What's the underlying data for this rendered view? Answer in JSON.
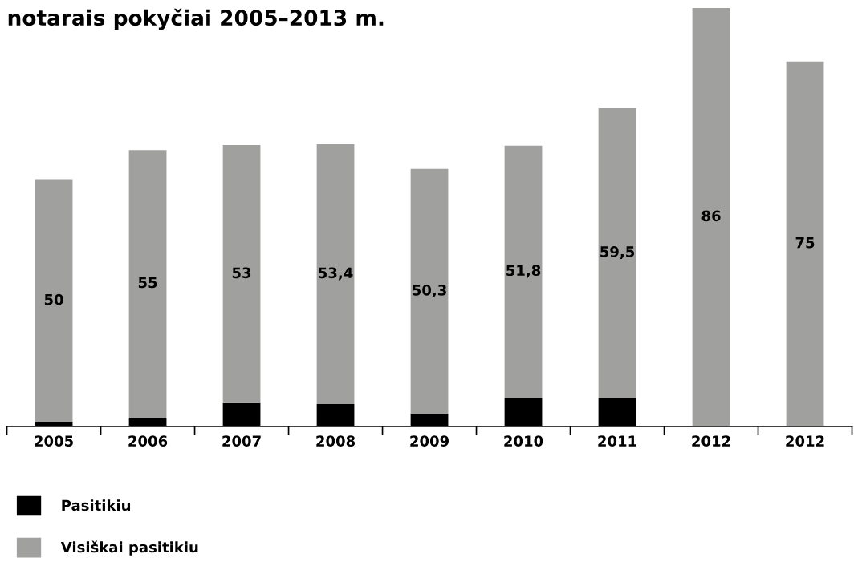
{
  "chart_data": {
    "type": "bar",
    "title": "notarais pokyčiai 2005–2013 m.",
    "stacked": true,
    "categories": [
      "2005",
      "2006",
      "2007",
      "2008",
      "2009",
      "2010",
      "2011",
      "2012",
      "2012"
    ],
    "series": [
      {
        "name": "Pasitikiu",
        "color": "#000000",
        "values": [
          0.8,
          1.8,
          4.8,
          4.6,
          2.6,
          5.9,
          5.9,
          0,
          0
        ]
      },
      {
        "name": "Visiškai pasitikiu",
        "color": "#a0a09f",
        "values": [
          50,
          55,
          53,
          53.4,
          50.3,
          51.8,
          59.5,
          86,
          75
        ],
        "value_labels": [
          "50",
          "55",
          "53",
          "53,4",
          "50,3",
          "51,8",
          "59,5",
          "86",
          "75"
        ]
      }
    ],
    "legend": "bottom left",
    "grid": false
  }
}
